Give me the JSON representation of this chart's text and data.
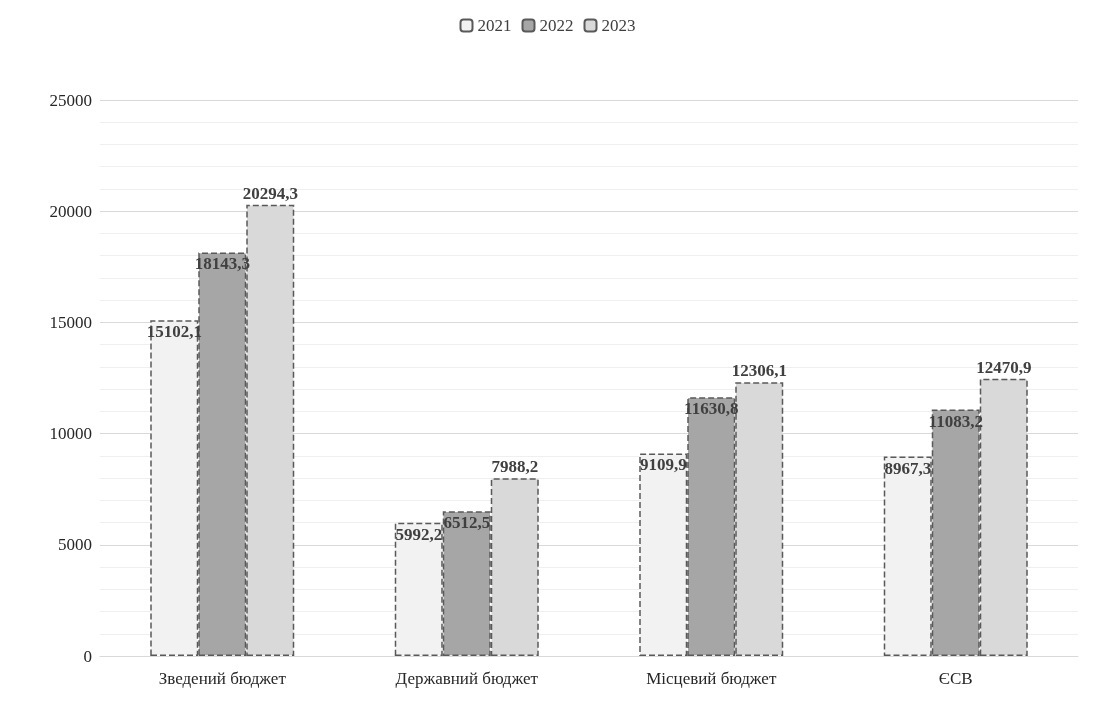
{
  "chart_data": {
    "type": "bar",
    "categories": [
      "Зведений бюджет",
      "Державний бюджет",
      "Місцевий бюджет",
      "ЄСВ"
    ],
    "series": [
      {
        "name": "2021",
        "color": "#f2f2f2",
        "values": [
          15102.1,
          5992.2,
          9109.9,
          8967.3
        ],
        "value_labels": [
          "15102,1",
          "5992,2",
          "9109,9",
          "8967,3"
        ]
      },
      {
        "name": "2022",
        "color": "#a6a6a6",
        "values": [
          18143.3,
          6512.5,
          11630.8,
          11083.2
        ],
        "value_labels": [
          "18143,3",
          "6512,5",
          "11630,8",
          "11083,2"
        ]
      },
      {
        "name": "2023",
        "color": "#d9d9d9",
        "values": [
          20294.3,
          7988.2,
          12306.1,
          12470.9
        ],
        "value_labels": [
          "20294,3",
          "7988,2",
          "12306,1",
          "12470,9"
        ]
      }
    ],
    "ylim": [
      0,
      25000
    ],
    "yticks": [
      0,
      5000,
      10000,
      15000,
      20000,
      25000
    ],
    "grid": true,
    "legend": "top",
    "line_style": "dashed"
  }
}
